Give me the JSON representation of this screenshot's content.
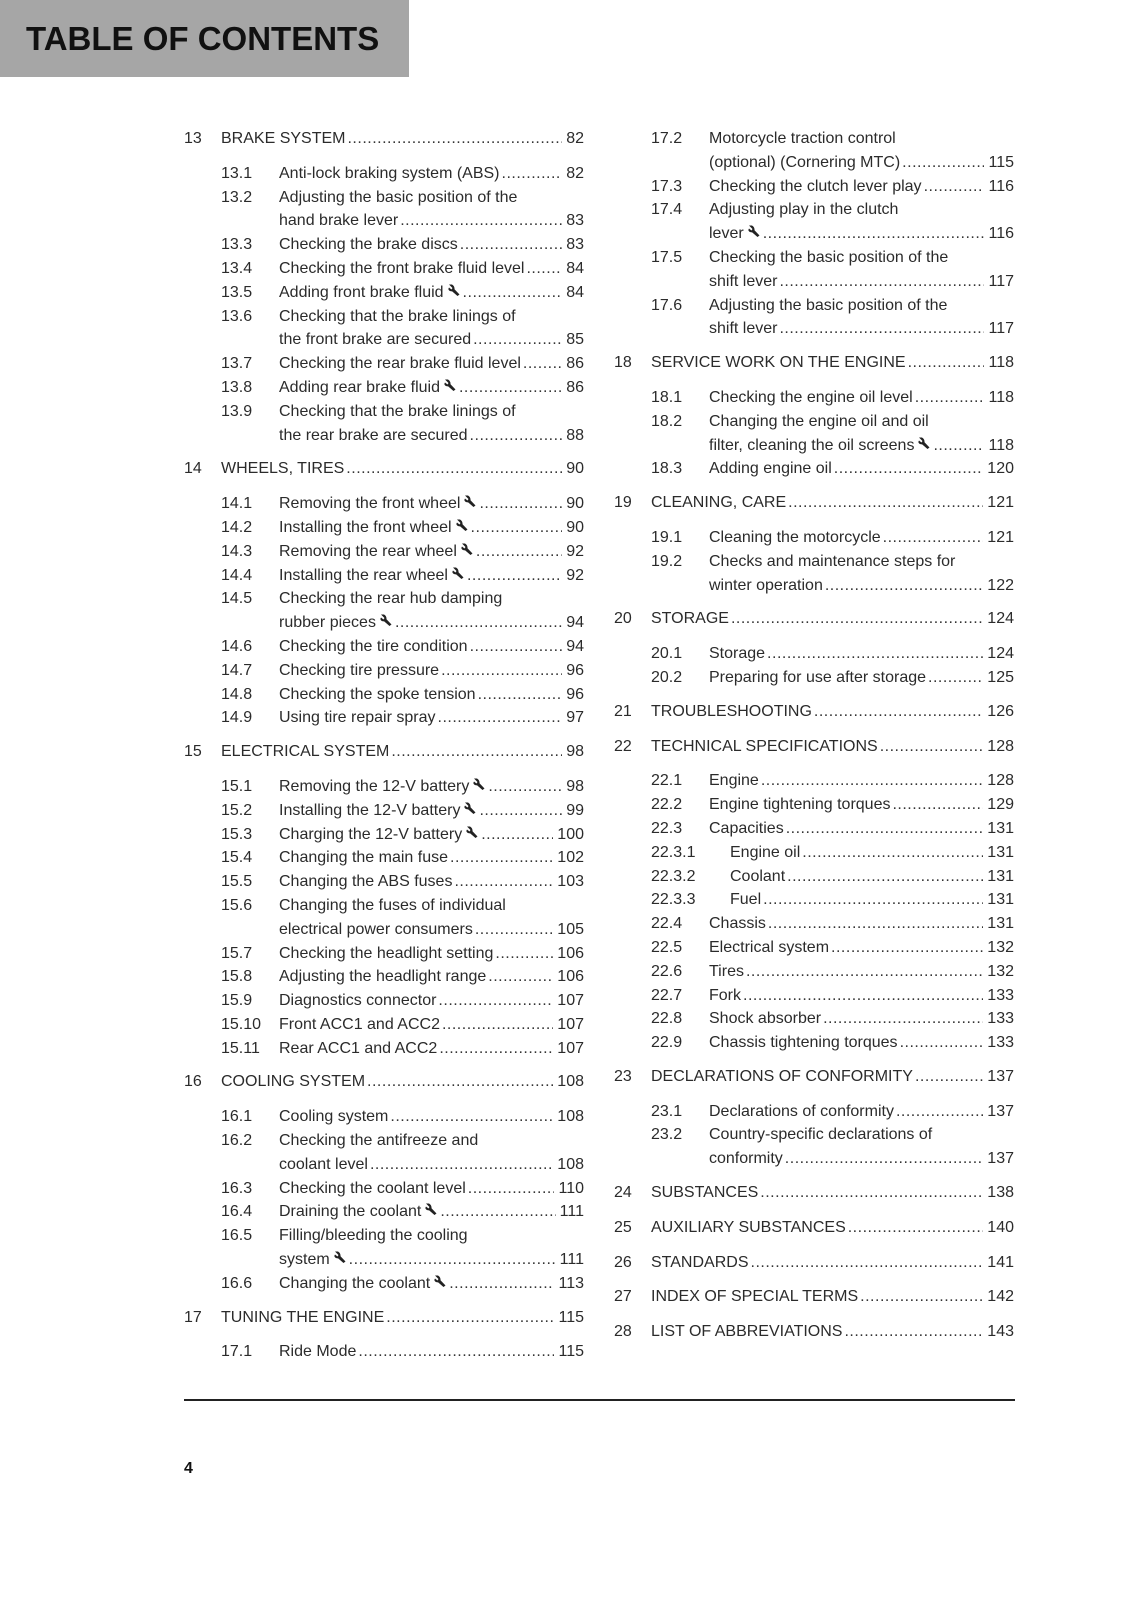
{
  "header": {
    "title": "TABLE OF CONTENTS"
  },
  "footer": {
    "page_number": "4"
  },
  "columns": [
    [
      {
        "level": "chapter",
        "num": "13",
        "lines": [
          "BRAKE SYSTEM"
        ],
        "page": "82"
      },
      {
        "level": "section",
        "num": "13.1",
        "lines": [
          "Anti-lock braking system (ABS)"
        ],
        "page": "82"
      },
      {
        "level": "section",
        "num": "13.2",
        "lines": [
          "Adjusting the basic position of the",
          "hand brake lever"
        ],
        "page": "83"
      },
      {
        "level": "section",
        "num": "13.3",
        "lines": [
          "Checking the brake discs"
        ],
        "page": "83"
      },
      {
        "level": "section",
        "num": "13.4",
        "lines": [
          "Checking the front brake fluid level"
        ],
        "page": "84"
      },
      {
        "level": "section",
        "num": "13.5",
        "lines": [
          "Adding front brake fluid"
        ],
        "page": "84",
        "tool": true
      },
      {
        "level": "section",
        "num": "13.6",
        "lines": [
          "Checking that the brake linings of",
          "the front brake are secured"
        ],
        "page": "85"
      },
      {
        "level": "section",
        "num": "13.7",
        "lines": [
          "Checking the rear brake fluid level"
        ],
        "page": "86"
      },
      {
        "level": "section",
        "num": "13.8",
        "lines": [
          "Adding rear brake fluid"
        ],
        "page": "86",
        "tool": true
      },
      {
        "level": "section",
        "num": "13.9",
        "lines": [
          "Checking that the brake linings of",
          "the rear brake are secured"
        ],
        "page": "88"
      },
      {
        "level": "chapter",
        "num": "14",
        "lines": [
          "WHEELS, TIRES"
        ],
        "page": "90"
      },
      {
        "level": "section",
        "num": "14.1",
        "lines": [
          "Removing the front wheel"
        ],
        "page": "90",
        "tool": true
      },
      {
        "level": "section",
        "num": "14.2",
        "lines": [
          "Installing the front wheel"
        ],
        "page": "90",
        "tool": true
      },
      {
        "level": "section",
        "num": "14.3",
        "lines": [
          "Removing the rear wheel"
        ],
        "page": "92",
        "tool": true
      },
      {
        "level": "section",
        "num": "14.4",
        "lines": [
          "Installing the rear wheel"
        ],
        "page": "92",
        "tool": true
      },
      {
        "level": "section",
        "num": "14.5",
        "lines": [
          "Checking the rear hub damping",
          "rubber pieces"
        ],
        "page": "94",
        "tool": true
      },
      {
        "level": "section",
        "num": "14.6",
        "lines": [
          "Checking the tire condition"
        ],
        "page": "94"
      },
      {
        "level": "section",
        "num": "14.7",
        "lines": [
          "Checking tire pressure"
        ],
        "page": "96"
      },
      {
        "level": "section",
        "num": "14.8",
        "lines": [
          "Checking the spoke tension"
        ],
        "page": "96"
      },
      {
        "level": "section",
        "num": "14.9",
        "lines": [
          "Using tire repair spray"
        ],
        "page": "97"
      },
      {
        "level": "chapter",
        "num": "15",
        "lines": [
          "ELECTRICAL SYSTEM"
        ],
        "page": "98"
      },
      {
        "level": "section",
        "num": "15.1",
        "lines": [
          "Removing the 12-V battery"
        ],
        "page": "98",
        "tool": true
      },
      {
        "level": "section",
        "num": "15.2",
        "lines": [
          "Installing the 12-V battery"
        ],
        "page": "99",
        "tool": true
      },
      {
        "level": "section",
        "num": "15.3",
        "lines": [
          "Charging the 12-V battery"
        ],
        "page": "100",
        "tool": true
      },
      {
        "level": "section",
        "num": "15.4",
        "lines": [
          "Changing the main fuse"
        ],
        "page": "102"
      },
      {
        "level": "section",
        "num": "15.5",
        "lines": [
          "Changing the ABS fuses"
        ],
        "page": "103"
      },
      {
        "level": "section",
        "num": "15.6",
        "lines": [
          "Changing the fuses of individual",
          "electrical power consumers"
        ],
        "page": "105"
      },
      {
        "level": "section",
        "num": "15.7",
        "lines": [
          "Checking the headlight setting"
        ],
        "page": "106"
      },
      {
        "level": "section",
        "num": "15.8",
        "lines": [
          "Adjusting the headlight range"
        ],
        "page": "106"
      },
      {
        "level": "section",
        "num": "15.9",
        "lines": [
          "Diagnostics connector"
        ],
        "page": "107"
      },
      {
        "level": "section",
        "num": "15.10",
        "lines": [
          "Front ACC1 and ACC2"
        ],
        "page": "107"
      },
      {
        "level": "section",
        "num": "15.11",
        "lines": [
          "Rear ACC1 and ACC2"
        ],
        "page": "107"
      },
      {
        "level": "chapter",
        "num": "16",
        "lines": [
          "COOLING SYSTEM"
        ],
        "page": "108"
      },
      {
        "level": "section",
        "num": "16.1",
        "lines": [
          "Cooling system"
        ],
        "page": "108"
      },
      {
        "level": "section",
        "num": "16.2",
        "lines": [
          "Checking the antifreeze and",
          "coolant level"
        ],
        "page": "108"
      },
      {
        "level": "section",
        "num": "16.3",
        "lines": [
          "Checking the coolant level"
        ],
        "page": "110"
      },
      {
        "level": "section",
        "num": "16.4",
        "lines": [
          "Draining the coolant"
        ],
        "page": "111",
        "tool": true
      },
      {
        "level": "section",
        "num": "16.5",
        "lines": [
          "Filling/bleeding the cooling",
          "system"
        ],
        "page": "111",
        "tool": true
      },
      {
        "level": "section",
        "num": "16.6",
        "lines": [
          "Changing the coolant"
        ],
        "page": "113",
        "tool": true
      },
      {
        "level": "chapter",
        "num": "17",
        "lines": [
          "TUNING THE ENGINE"
        ],
        "page": "115"
      },
      {
        "level": "section",
        "num": "17.1",
        "lines": [
          "Ride Mode"
        ],
        "page": "115"
      }
    ],
    [
      {
        "level": "section",
        "num": "17.2",
        "lines": [
          "Motorcycle traction control",
          "(optional) (Cornering MTC)"
        ],
        "page": "115"
      },
      {
        "level": "section",
        "num": "17.3",
        "lines": [
          "Checking the clutch lever play"
        ],
        "page": "116"
      },
      {
        "level": "section",
        "num": "17.4",
        "lines": [
          "Adjusting play in the clutch",
          "lever"
        ],
        "page": "116",
        "tool": true
      },
      {
        "level": "section",
        "num": "17.5",
        "lines": [
          "Checking the basic position of the",
          "shift lever"
        ],
        "page": "117"
      },
      {
        "level": "section",
        "num": "17.6",
        "lines": [
          "Adjusting the basic position of the",
          "shift lever"
        ],
        "page": "117"
      },
      {
        "level": "chapter",
        "num": "18",
        "lines": [
          "SERVICE WORK ON THE ENGINE"
        ],
        "page": "118"
      },
      {
        "level": "section",
        "num": "18.1",
        "lines": [
          "Checking the engine oil level"
        ],
        "page": "118"
      },
      {
        "level": "section",
        "num": "18.2",
        "lines": [
          "Changing the engine oil and oil",
          "filter, cleaning the oil screens"
        ],
        "page": "118",
        "tool": true
      },
      {
        "level": "section",
        "num": "18.3",
        "lines": [
          "Adding engine oil"
        ],
        "page": "120"
      },
      {
        "level": "chapter",
        "num": "19",
        "lines": [
          "CLEANING, CARE"
        ],
        "page": "121"
      },
      {
        "level": "section",
        "num": "19.1",
        "lines": [
          "Cleaning the motorcycle"
        ],
        "page": "121"
      },
      {
        "level": "section",
        "num": "19.2",
        "lines": [
          "Checks and maintenance steps for",
          "winter operation"
        ],
        "page": "122"
      },
      {
        "level": "chapter",
        "num": "20",
        "lines": [
          "STORAGE"
        ],
        "page": "124"
      },
      {
        "level": "section",
        "num": "20.1",
        "lines": [
          "Storage"
        ],
        "page": "124"
      },
      {
        "level": "section",
        "num": "20.2",
        "lines": [
          "Preparing for use after storage"
        ],
        "page": "125"
      },
      {
        "level": "chapter",
        "num": "21",
        "lines": [
          "TROUBLESHOOTING"
        ],
        "page": "126"
      },
      {
        "level": "chapter",
        "num": "22",
        "lines": [
          "TECHNICAL SPECIFICATIONS"
        ],
        "page": "128",
        "tight": true
      },
      {
        "level": "section",
        "num": "22.1",
        "lines": [
          "Engine"
        ],
        "page": "128"
      },
      {
        "level": "section",
        "num": "22.2",
        "lines": [
          "Engine tightening torques"
        ],
        "page": "129"
      },
      {
        "level": "section",
        "num": "22.3",
        "lines": [
          "Capacities"
        ],
        "page": "131"
      },
      {
        "level": "subsection",
        "num": "22.3.1",
        "lines": [
          "Engine oil"
        ],
        "page": "131"
      },
      {
        "level": "subsection",
        "num": "22.3.2",
        "lines": [
          "Coolant"
        ],
        "page": "131"
      },
      {
        "level": "subsection",
        "num": "22.3.3",
        "lines": [
          "Fuel"
        ],
        "page": "131"
      },
      {
        "level": "section",
        "num": "22.4",
        "lines": [
          "Chassis"
        ],
        "page": "131"
      },
      {
        "level": "section",
        "num": "22.5",
        "lines": [
          "Electrical system"
        ],
        "page": "132"
      },
      {
        "level": "section",
        "num": "22.6",
        "lines": [
          "Tires"
        ],
        "page": "132"
      },
      {
        "level": "section",
        "num": "22.7",
        "lines": [
          "Fork"
        ],
        "page": "133"
      },
      {
        "level": "section",
        "num": "22.8",
        "lines": [
          "Shock absorber"
        ],
        "page": "133"
      },
      {
        "level": "section",
        "num": "22.9",
        "lines": [
          "Chassis tightening torques"
        ],
        "page": "133"
      },
      {
        "level": "chapter",
        "num": "23",
        "lines": [
          "DECLARATIONS OF CONFORMITY"
        ],
        "page": "137"
      },
      {
        "level": "section",
        "num": "23.1",
        "lines": [
          "Declarations of conformity"
        ],
        "page": "137"
      },
      {
        "level": "section",
        "num": "23.2",
        "lines": [
          "Country-specific declarations of",
          "conformity"
        ],
        "page": "137"
      },
      {
        "level": "chapter",
        "num": "24",
        "lines": [
          "SUBSTANCES"
        ],
        "page": "138"
      },
      {
        "level": "chapter",
        "num": "25",
        "lines": [
          "AUXILIARY SUBSTANCES"
        ],
        "page": "140"
      },
      {
        "level": "chapter",
        "num": "26",
        "lines": [
          "STANDARDS"
        ],
        "page": "141"
      },
      {
        "level": "chapter",
        "num": "27",
        "lines": [
          "INDEX OF SPECIAL TERMS"
        ],
        "page": "142"
      },
      {
        "level": "chapter",
        "num": "28",
        "lines": [
          "LIST OF ABBREVIATIONS"
        ],
        "page": "143"
      }
    ]
  ]
}
